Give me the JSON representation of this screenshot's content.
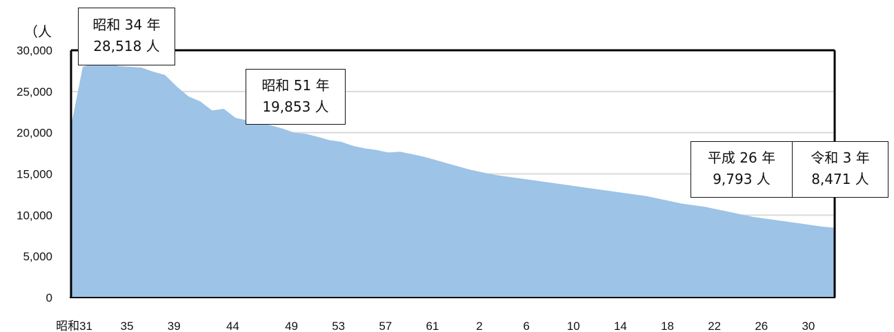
{
  "chart_data": {
    "type": "area",
    "ylabel": "（人",
    "x_tick_labels": [
      "昭和31",
      "35",
      "39",
      "44",
      "49",
      "53",
      "57",
      "61",
      "2",
      "6",
      "10",
      "14",
      "18",
      "22",
      "26",
      "30"
    ],
    "x_tick_indices": [
      0,
      4,
      8,
      13,
      18,
      22,
      26,
      30,
      34,
      38,
      42,
      46,
      50,
      54,
      58,
      62
    ],
    "y_ticks": [
      0,
      5000,
      10000,
      15000,
      20000,
      25000,
      30000
    ],
    "y_tick_labels": [
      "0",
      "5,000",
      "10,000",
      "15,000",
      "20,000",
      "25,000",
      "30,000"
    ],
    "ylim": [
      0,
      30000
    ],
    "grid": true,
    "fill_color": "#9dc3e6",
    "x": [
      "昭和31",
      "昭和32",
      "昭和33",
      "昭和34",
      "昭和35",
      "昭和36",
      "昭和37",
      "昭和38",
      "昭和39",
      "昭和40",
      "昭和41",
      "昭和42",
      "昭和43",
      "昭和44",
      "昭和45",
      "昭和46",
      "昭和47",
      "昭和48",
      "昭和49",
      "昭和50",
      "昭和51",
      "昭和52",
      "昭和53",
      "昭和54",
      "昭和55",
      "昭和56",
      "昭和57",
      "昭和58",
      "昭和59",
      "昭和60",
      "昭和61",
      "昭和62",
      "昭和63",
      "平成1",
      "平成2",
      "平成3",
      "平成4",
      "平成5",
      "平成6",
      "平成7",
      "平成8",
      "平成9",
      "平成10",
      "平成11",
      "平成12",
      "平成13",
      "平成14",
      "平成15",
      "平成16",
      "平成17",
      "平成18",
      "平成19",
      "平成20",
      "平成21",
      "平成22",
      "平成23",
      "平成24",
      "平成25",
      "平成26",
      "平成27",
      "平成28",
      "平成29",
      "平成30",
      "令和1",
      "令和2",
      "令和3"
    ],
    "values": [
      20800,
      28000,
      28400,
      28518,
      28100,
      28000,
      27900,
      27400,
      27000,
      25600,
      24400,
      23800,
      22700,
      22900,
      21800,
      21500,
      21200,
      20900,
      20500,
      20000,
      19853,
      19500,
      19100,
      18900,
      18400,
      18100,
      17900,
      17600,
      17700,
      17400,
      17100,
      16700,
      16300,
      15900,
      15500,
      15200,
      14900,
      14700,
      14500,
      14300,
      14100,
      13900,
      13700,
      13500,
      13300,
      13100,
      12900,
      12700,
      12500,
      12300,
      12000,
      11700,
      11400,
      11200,
      11000,
      10700,
      10400,
      10100,
      9793,
      9600,
      9400,
      9200,
      9000,
      8800,
      8600,
      8471
    ],
    "annotations": [
      {
        "line1": "昭和 34 年",
        "line2": "28,518 人"
      },
      {
        "line1": "昭和 51 年",
        "line2": "19,853 人"
      },
      {
        "line1": "平成 26 年",
        "line2": "9,793 人"
      },
      {
        "line1": "令和 3 年",
        "line2": "8,471 人"
      }
    ]
  }
}
